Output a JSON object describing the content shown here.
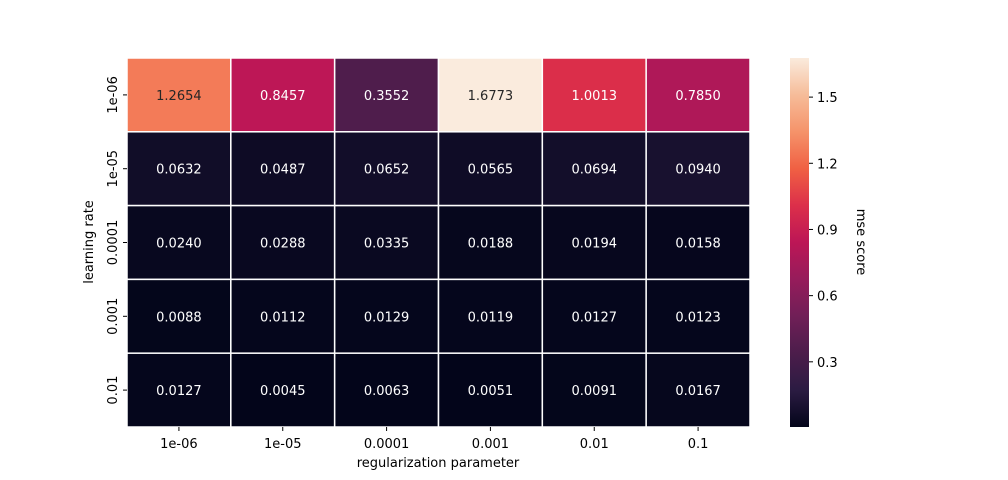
{
  "chart_data": {
    "type": "heatmap",
    "title": "",
    "xlabel": "regularization parameter",
    "ylabel": "learning rate",
    "x_categories": [
      "1e-06",
      "1e-05",
      "0.0001",
      "0.001",
      "0.01",
      "0.1"
    ],
    "y_categories": [
      "1e-06",
      "1e-05",
      "0.0001",
      "0.001",
      "0.01"
    ],
    "values": [
      [
        1.2654,
        0.8457,
        0.3552,
        1.6773,
        1.0013,
        0.785
      ],
      [
        0.0632,
        0.0487,
        0.0652,
        0.0565,
        0.0694,
        0.094
      ],
      [
        0.024,
        0.0288,
        0.0335,
        0.0188,
        0.0194,
        0.0158
      ],
      [
        0.0088,
        0.0112,
        0.0129,
        0.0119,
        0.0127,
        0.0123
      ],
      [
        0.0127,
        0.0045,
        0.0063,
        0.0051,
        0.0091,
        0.0167
      ]
    ],
    "value_format": "0.0000",
    "colorbar": {
      "label": "mse score",
      "ticks": [
        0.3,
        0.6,
        0.9,
        1.2,
        1.5
      ],
      "min": 0.0045,
      "max": 1.6773,
      "colormap": "rocket",
      "colormap_stops": [
        "#03051a",
        "#2b1b42",
        "#4c1d4b",
        "#701f57",
        "#961c5b",
        "#bc1656",
        "#dc2f4a",
        "#f06043",
        "#f5936a",
        "#f6bc99",
        "#faebdd"
      ]
    },
    "grid": false,
    "cell_separator_color": "#ffffff"
  }
}
